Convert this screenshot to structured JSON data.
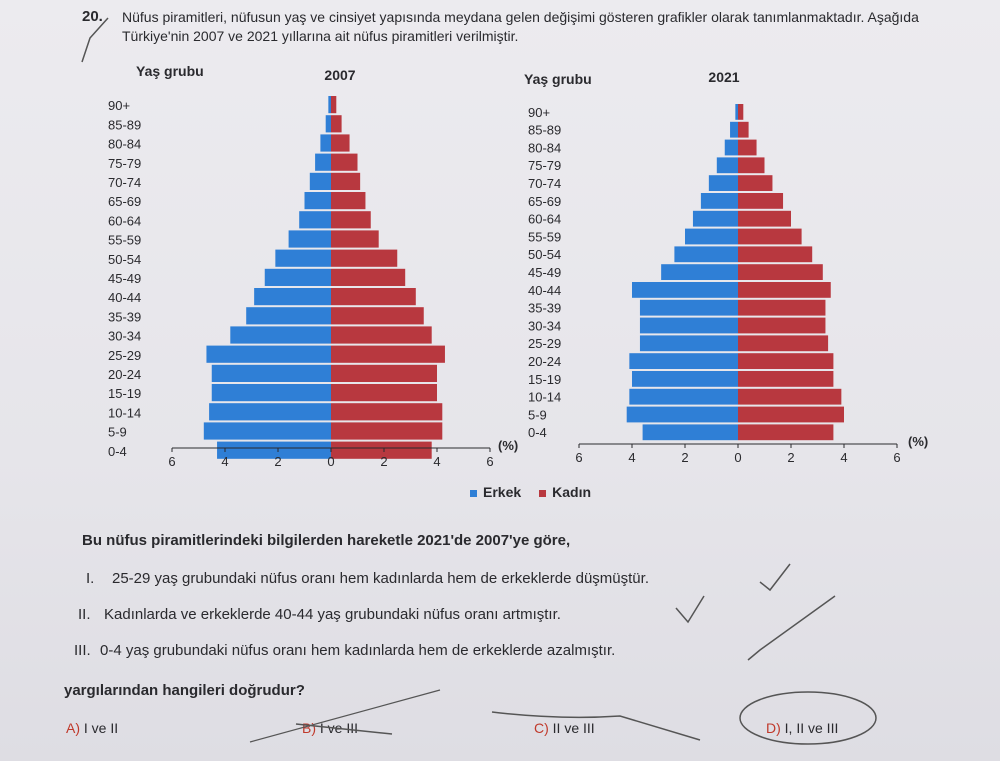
{
  "question": {
    "number": "20.",
    "intro": "Nüfus piramitleri, nüfusun yaş ve cinsiyet yapısında meydana gelen değişimi gösteren grafikler olarak tanımlanmaktadır. Aşağıda Türkiye'nin 2007 ve 2021 yıllarına ait nüfus piramitleri verilmiştir."
  },
  "chart_data": [
    {
      "type": "bar",
      "orientation": "horizontal-pyramid",
      "title": "2007",
      "ylabel": "Yaş grubu",
      "xlabel": "(%)",
      "xticks": [
        "6",
        "4",
        "2",
        "0",
        "2",
        "4",
        "6"
      ],
      "xlim": [
        -6,
        6
      ],
      "categories": [
        "90+",
        "85-89",
        "80-84",
        "75-79",
        "70-74",
        "65-69",
        "60-64",
        "55-59",
        "50-54",
        "45-49",
        "40-44",
        "35-39",
        "30-34",
        "25-29",
        "20-24",
        "15-19",
        "10-14",
        "5-9",
        "0-4"
      ],
      "series": [
        {
          "name": "Erkek",
          "values": [
            0.1,
            0.2,
            0.4,
            0.6,
            0.8,
            1.0,
            1.2,
            1.6,
            2.1,
            2.5,
            2.9,
            3.2,
            3.8,
            4.7,
            4.5,
            4.5,
            4.6,
            4.8,
            4.3
          ]
        },
        {
          "name": "Kadın",
          "values": [
            0.2,
            0.4,
            0.7,
            1.0,
            1.1,
            1.3,
            1.5,
            1.8,
            2.5,
            2.8,
            3.2,
            3.5,
            3.8,
            4.3,
            4.0,
            4.0,
            4.2,
            4.2,
            3.8
          ]
        }
      ],
      "grid": false
    },
    {
      "type": "bar",
      "orientation": "horizontal-pyramid",
      "title": "2021",
      "ylabel": "Yaş grubu",
      "xlabel": "(%)",
      "xticks": [
        "6",
        "4",
        "2",
        "0",
        "2",
        "4",
        "6"
      ],
      "xlim": [
        -6,
        6
      ],
      "categories": [
        "90+",
        "85-89",
        "80-84",
        "75-79",
        "70-74",
        "65-69",
        "60-64",
        "55-59",
        "50-54",
        "45-49",
        "40-44",
        "35-39",
        "30-34",
        "25-29",
        "20-24",
        "15-19",
        "10-14",
        "5-9",
        "0-4"
      ],
      "series": [
        {
          "name": "Erkek",
          "values": [
            0.1,
            0.3,
            0.5,
            0.8,
            1.1,
            1.4,
            1.7,
            2.0,
            2.4,
            2.9,
            4.0,
            3.7,
            3.7,
            3.7,
            4.1,
            4.0,
            4.1,
            4.2,
            3.6
          ]
        },
        {
          "name": "Kadın",
          "values": [
            0.2,
            0.4,
            0.7,
            1.0,
            1.3,
            1.7,
            2.0,
            2.4,
            2.8,
            3.2,
            3.5,
            3.3,
            3.3,
            3.4,
            3.6,
            3.6,
            3.9,
            4.0,
            3.6
          ]
        }
      ],
      "grid": false
    }
  ],
  "legend": {
    "male": "Erkek",
    "female": "Kadın",
    "male_color": "#2f7fd6",
    "female_color": "#b8383f"
  },
  "stem": "Bu nüfus piramitlerindeki bilgilerden hareketle 2021'de 2007'ye göre,",
  "statements": [
    {
      "roman": "I.",
      "text": "25-29 yaş grubundaki nüfus oranı hem kadınlarda hem de erkeklerde düşmüştür."
    },
    {
      "roman": "II.",
      "text": "Kadınlarda ve erkeklerde 40-44 yaş grubundaki nüfus oranı artmıştır."
    },
    {
      "roman": "III.",
      "text": "0-4 yaş grubundaki nüfus oranı hem kadınlarda hem de erkeklerde azalmıştır."
    }
  ],
  "ask": "yargılarından hangileri doğrudur?",
  "options": [
    {
      "letter": "A)",
      "text": "I ve II"
    },
    {
      "letter": "B)",
      "text": "I ve III"
    },
    {
      "letter": "C)",
      "text": "II ve III"
    },
    {
      "letter": "D)",
      "text": "I, II ve III"
    }
  ]
}
